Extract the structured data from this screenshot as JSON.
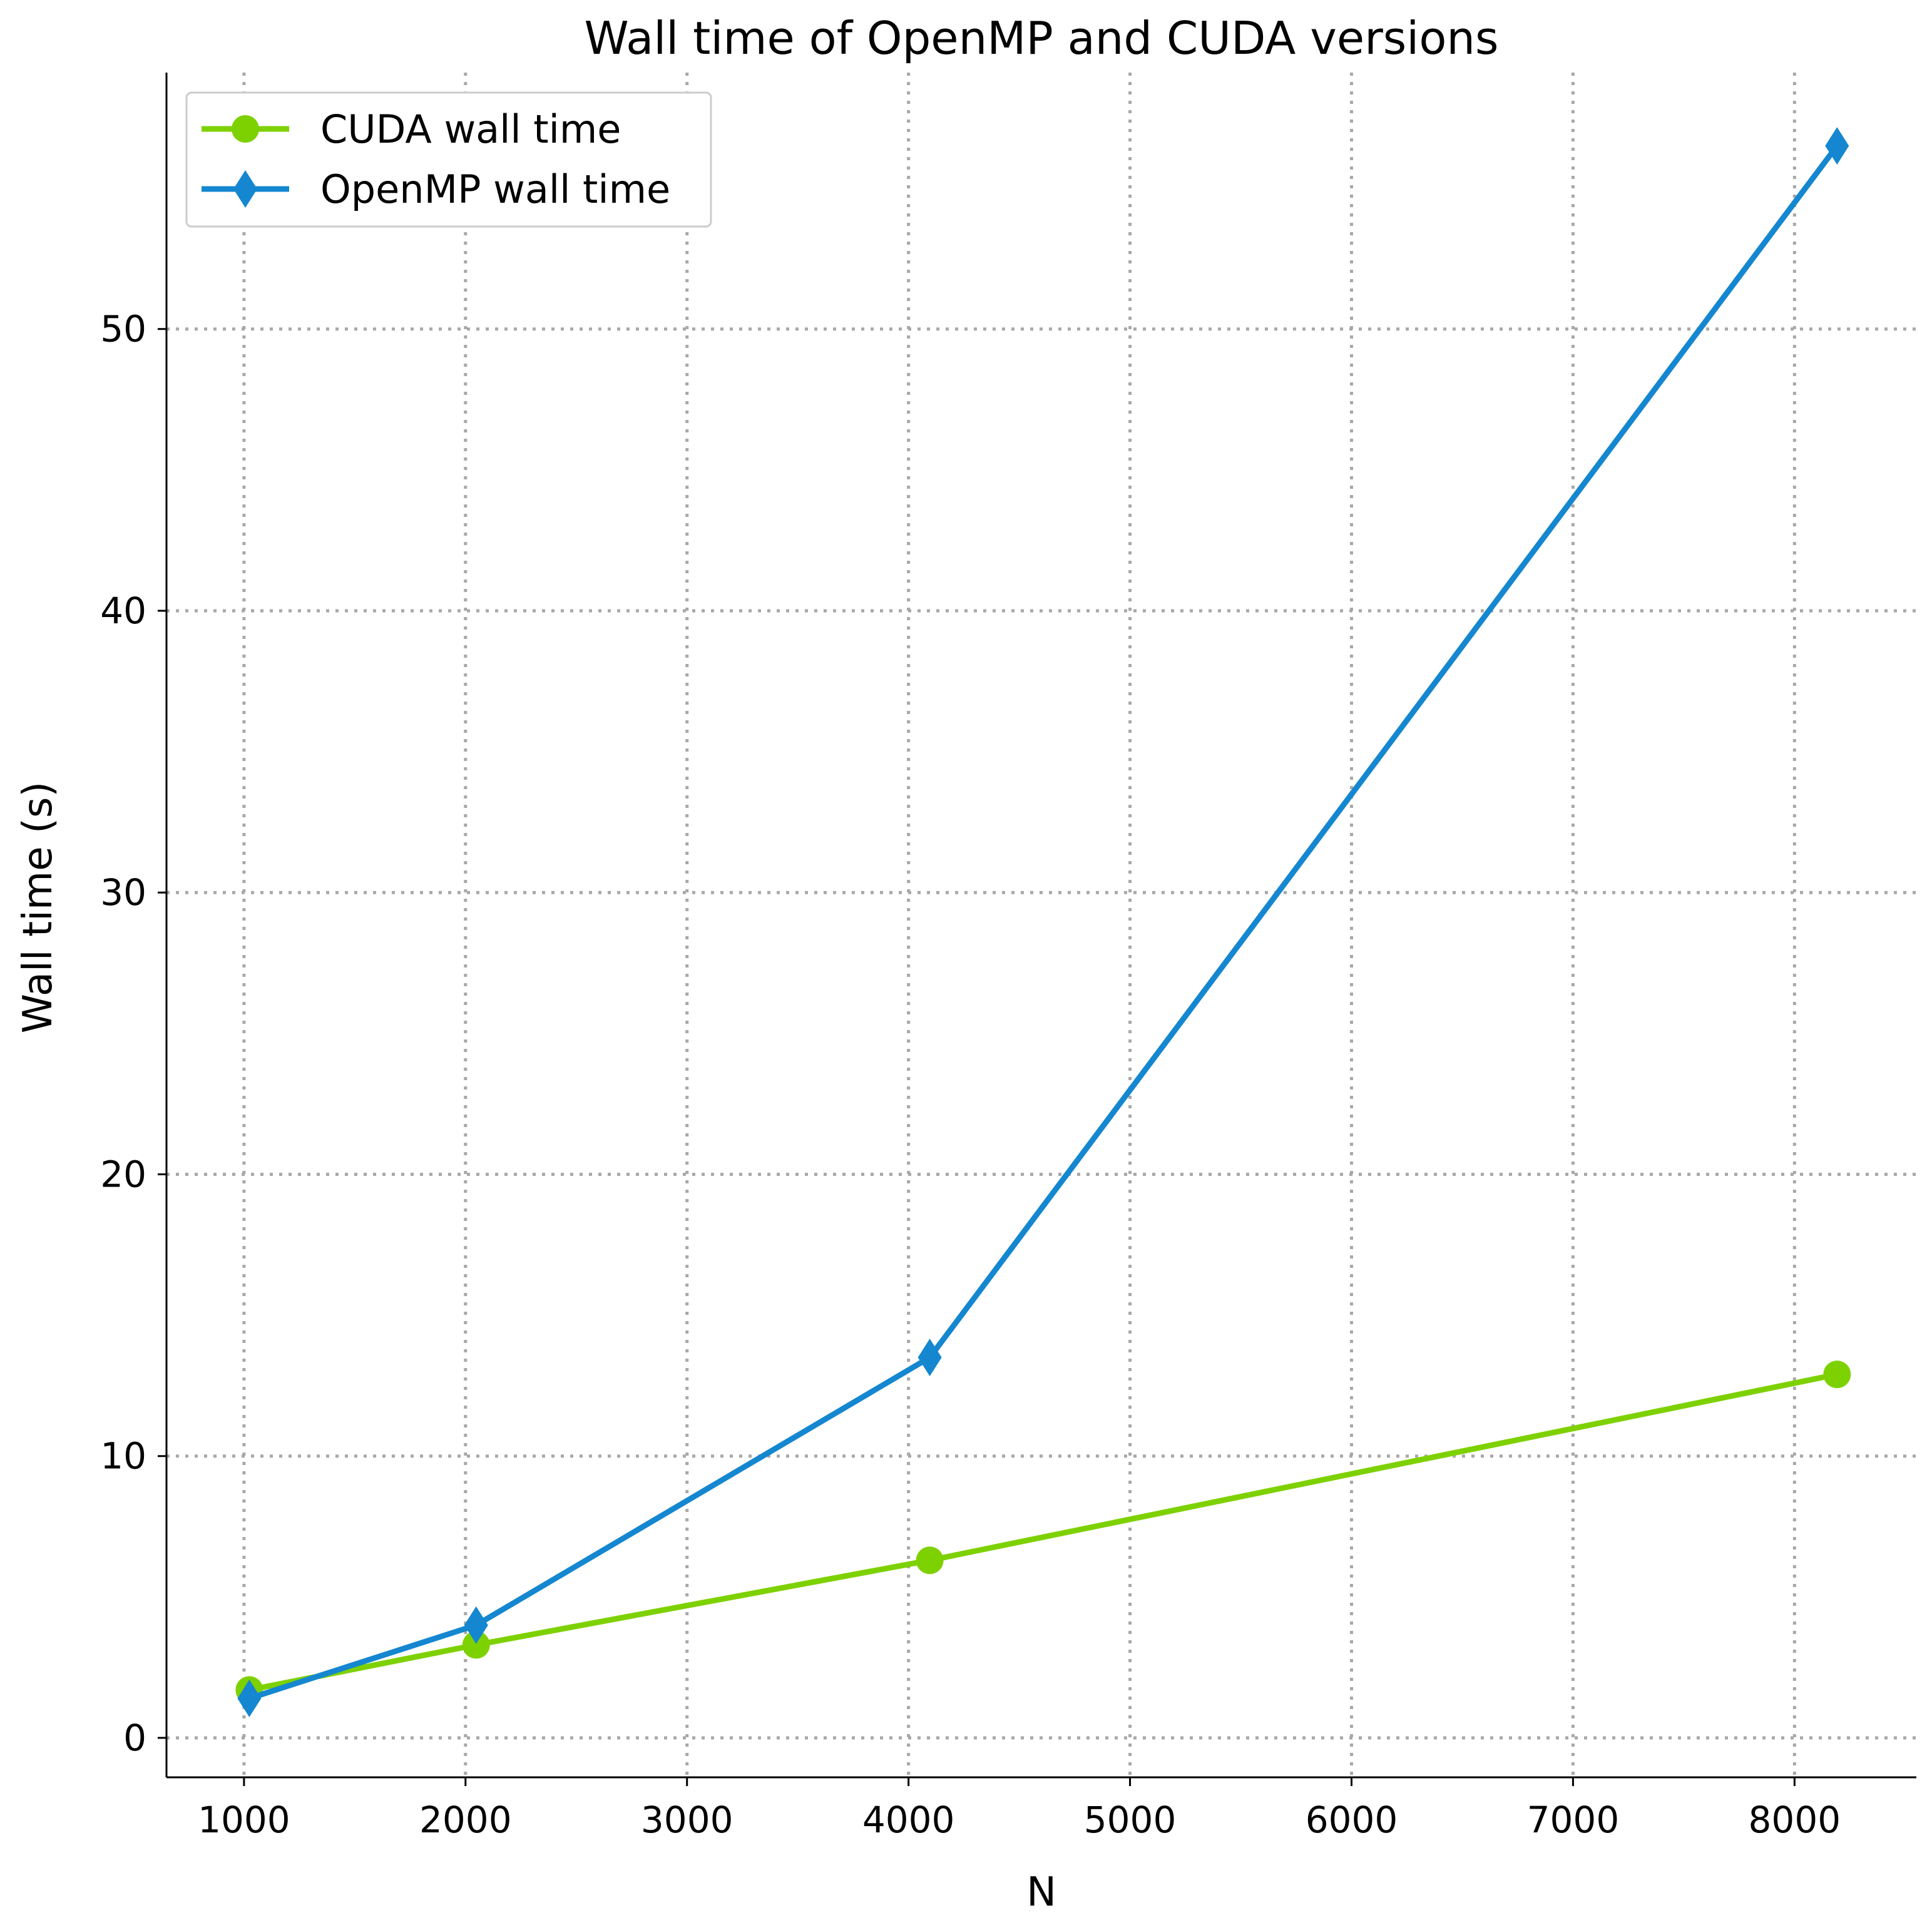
{
  "chart_data": {
    "type": "line",
    "title": "Wall time of OpenMP and CUDA versions",
    "xlabel": "N",
    "ylabel": "Wall time (s)",
    "xlim": [
      650,
      8550
    ],
    "ylim": [
      -1.4,
      59.1
    ],
    "x_ticks": [
      1000,
      2000,
      3000,
      4000,
      5000,
      6000,
      7000,
      8000
    ],
    "x_tick_labels": [
      "1000",
      "2000",
      "3000",
      "4000",
      "5000",
      "6000",
      "7000",
      "8000"
    ],
    "y_ticks": [
      0,
      10,
      20,
      30,
      40,
      50
    ],
    "y_tick_labels": [
      "0",
      "10",
      "20",
      "30",
      "40",
      "50"
    ],
    "grid": true,
    "legend_position": "upper-left",
    "series": [
      {
        "name": "CUDA wall time",
        "color": "#7ed100",
        "marker": "circle",
        "x": [
          1024,
          2048,
          4096,
          8192
        ],
        "y": [
          1.7,
          3.3,
          6.3,
          12.9
        ]
      },
      {
        "name": "OpenMP wall time",
        "color": "#1487d0",
        "marker": "thin-diamond",
        "x": [
          1024,
          2048,
          4096,
          8192
        ],
        "y": [
          1.4,
          4.0,
          13.5,
          56.5
        ]
      }
    ]
  }
}
